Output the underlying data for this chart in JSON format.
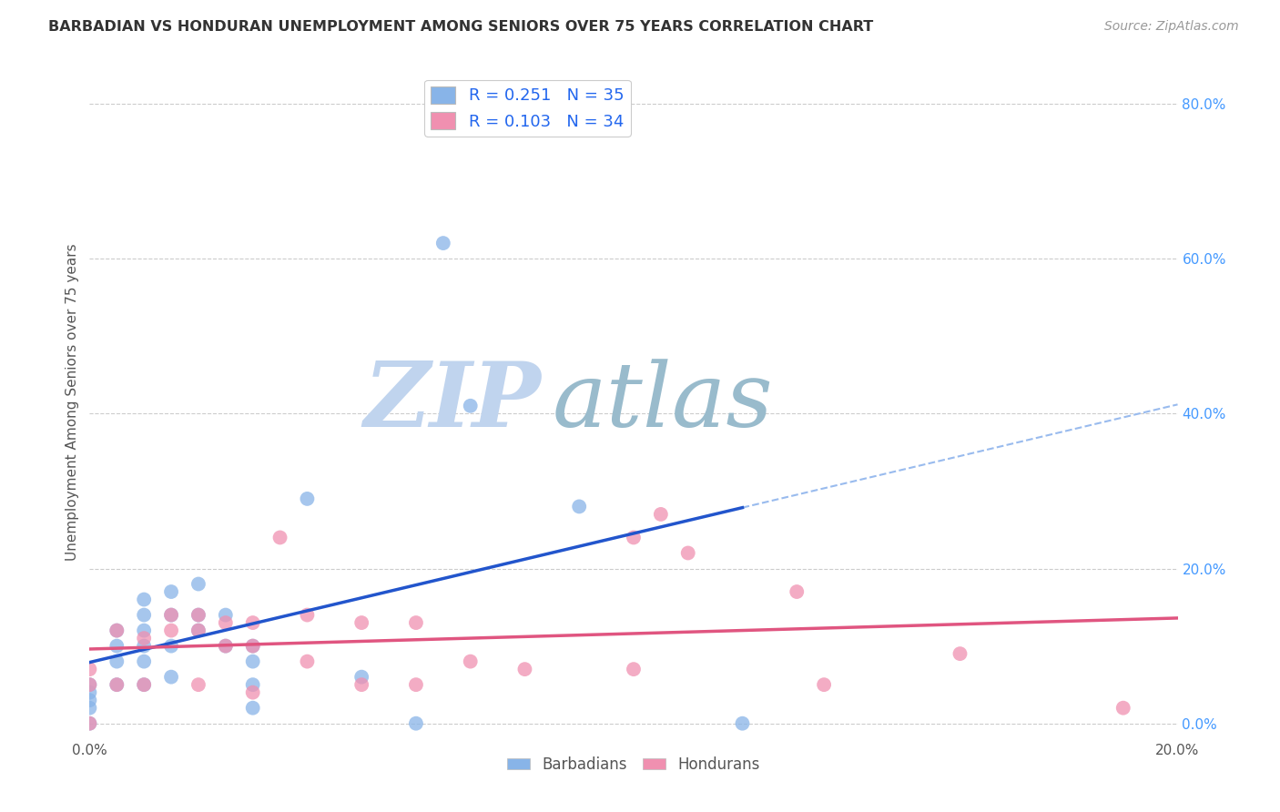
{
  "title": "BARBADIAN VS HONDURAN UNEMPLOYMENT AMONG SENIORS OVER 75 YEARS CORRELATION CHART",
  "source": "Source: ZipAtlas.com",
  "ylabel": "Unemployment Among Seniors over 75 years",
  "xlim": [
    0.0,
    0.2
  ],
  "ylim": [
    -0.02,
    0.85
  ],
  "right_yticks": [
    0.0,
    0.2,
    0.4,
    0.6,
    0.8
  ],
  "right_yticklabels": [
    "0.0%",
    "20.0%",
    "40.0%",
    "60.0%",
    "80.0%"
  ],
  "xticks": [
    0.0,
    0.04,
    0.08,
    0.12,
    0.16,
    0.2
  ],
  "xticklabels": [
    "0.0%",
    "",
    "",
    "",
    "",
    "20.0%"
  ],
  "legend_entries": [
    {
      "label": "R = 0.251   N = 35",
      "color": "#aac4f0"
    },
    {
      "label": "R = 0.103   N = 34",
      "color": "#f5a8c4"
    }
  ],
  "barbadian_color": "#88b4e8",
  "honduran_color": "#f090b0",
  "regression_blue_color": "#2255cc",
  "regression_pink_color": "#e05580",
  "dashed_color": "#99bbee",
  "watermark_zip_color": "#c0d4ee",
  "watermark_atlas_color": "#99bbcc",
  "barbadian_x": [
    0.0,
    0.0,
    0.0,
    0.0,
    0.0,
    0.005,
    0.005,
    0.005,
    0.005,
    0.01,
    0.01,
    0.01,
    0.01,
    0.01,
    0.01,
    0.015,
    0.015,
    0.015,
    0.015,
    0.02,
    0.02,
    0.02,
    0.025,
    0.025,
    0.03,
    0.03,
    0.03,
    0.03,
    0.04,
    0.05,
    0.06,
    0.065,
    0.07,
    0.09,
    0.12
  ],
  "barbadian_y": [
    0.05,
    0.04,
    0.03,
    0.02,
    0.0,
    0.12,
    0.1,
    0.08,
    0.05,
    0.16,
    0.14,
    0.12,
    0.1,
    0.08,
    0.05,
    0.17,
    0.14,
    0.1,
    0.06,
    0.18,
    0.14,
    0.12,
    0.14,
    0.1,
    0.1,
    0.08,
    0.05,
    0.02,
    0.29,
    0.06,
    0.0,
    0.62,
    0.41,
    0.28,
    0.0
  ],
  "honduran_x": [
    0.0,
    0.0,
    0.0,
    0.005,
    0.005,
    0.01,
    0.01,
    0.015,
    0.015,
    0.02,
    0.02,
    0.02,
    0.025,
    0.025,
    0.03,
    0.03,
    0.03,
    0.035,
    0.04,
    0.04,
    0.05,
    0.05,
    0.06,
    0.06,
    0.07,
    0.08,
    0.1,
    0.1,
    0.105,
    0.11,
    0.13,
    0.135,
    0.16,
    0.19
  ],
  "honduran_y": [
    0.07,
    0.05,
    0.0,
    0.12,
    0.05,
    0.11,
    0.05,
    0.14,
    0.12,
    0.14,
    0.12,
    0.05,
    0.13,
    0.1,
    0.13,
    0.1,
    0.04,
    0.24,
    0.14,
    0.08,
    0.13,
    0.05,
    0.13,
    0.05,
    0.08,
    0.07,
    0.24,
    0.07,
    0.27,
    0.22,
    0.17,
    0.05,
    0.09,
    0.02
  ],
  "background_color": "#ffffff",
  "grid_color": "#cccccc"
}
